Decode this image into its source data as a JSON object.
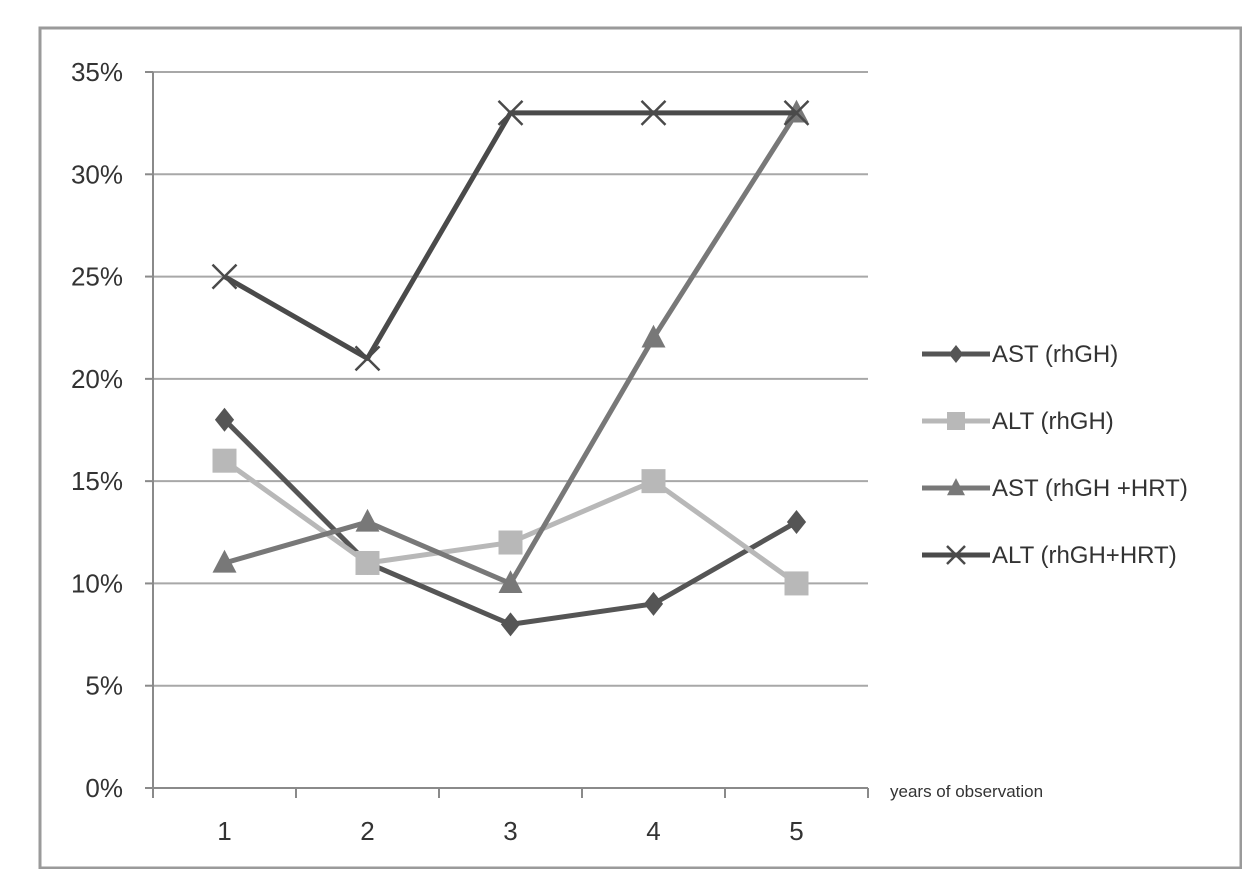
{
  "chart_data": {
    "type": "line",
    "title": "",
    "xlabel": "years of observation",
    "ylabel": "",
    "categories": [
      "1",
      "2",
      "3",
      "4",
      "5"
    ],
    "ylim": [
      0,
      35
    ],
    "yticks": [
      "0%",
      "5%",
      "10%",
      "15%",
      "20%",
      "25%",
      "30%",
      "35%"
    ],
    "ytick_values": [
      0,
      5,
      10,
      15,
      20,
      25,
      30,
      35
    ],
    "grid": true,
    "legend_position": "right",
    "series": [
      {
        "name": "AST (rhGH)",
        "values": [
          18,
          11,
          8,
          9,
          13
        ],
        "color": "#555555",
        "marker": "diamond"
      },
      {
        "name": "ALT (rhGH)",
        "values": [
          16,
          11,
          12,
          15,
          10
        ],
        "color": "#b8b8b8",
        "marker": "square"
      },
      {
        "name": "AST (rhGH  +HRT)",
        "values": [
          11,
          13,
          10,
          22,
          33
        ],
        "color": "#787878",
        "marker": "triangle"
      },
      {
        "name": "ALT (rhGH+HRT)",
        "values": [
          25,
          21,
          33,
          33,
          33
        ],
        "color": "#4a4a4a",
        "marker": "x"
      }
    ]
  }
}
